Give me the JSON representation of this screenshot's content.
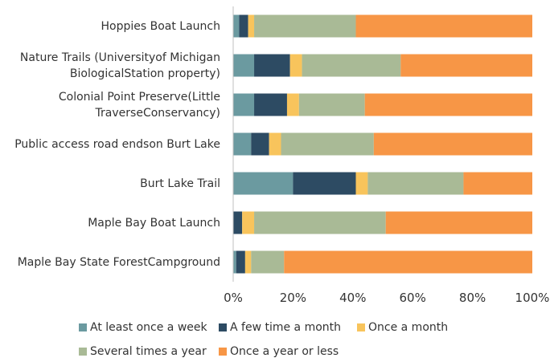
{
  "chart_data": {
    "type": "stacked-barh",
    "categories": [
      "Hoppies Boat Launch",
      "Nature Trails (Universityof Michigan\nBiologicalStation property)",
      "Colonial Point Preserve(Little\nTraverseConservancy)",
      "Public access road endson Burt Lake",
      "Burt Lake Trail",
      "Maple Bay Boat Launch",
      "Maple Bay State ForestCampground"
    ],
    "series": [
      {
        "name": "At least once a week",
        "color": "#6b9aa0",
        "values": [
          2,
          7,
          7,
          6,
          20,
          0,
          1
        ]
      },
      {
        "name": "A few time a month",
        "color": "#2d4b63",
        "values": [
          3,
          12,
          11,
          6,
          21,
          3,
          3
        ]
      },
      {
        "name": "Once a month",
        "color": "#f8c45c",
        "values": [
          2,
          4,
          4,
          4,
          4,
          4,
          2
        ]
      },
      {
        "name": "Several times a year",
        "color": "#a9ba96",
        "values": [
          34,
          33,
          22,
          31,
          32,
          44,
          11
        ]
      },
      {
        "name": "Once a year or less",
        "color": "#f79646",
        "values": [
          59,
          44,
          56,
          53,
          23,
          49,
          83
        ]
      }
    ],
    "xlim": [
      0,
      100
    ],
    "xticks": [
      {
        "value": 0,
        "label": "0%"
      },
      {
        "value": 20,
        "label": "20%"
      },
      {
        "value": 40,
        "label": "40%"
      },
      {
        "value": 60,
        "label": "60%"
      },
      {
        "value": 80,
        "label": "80%"
      },
      {
        "value": 100,
        "label": "100%"
      }
    ],
    "legend": "bottom"
  }
}
